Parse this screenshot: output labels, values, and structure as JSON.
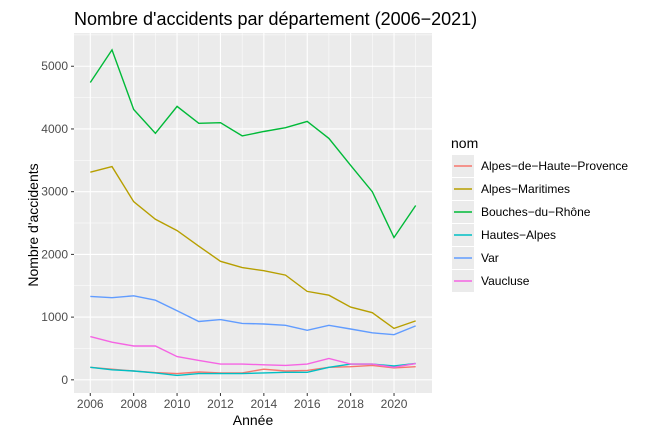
{
  "chart_data": {
    "type": "line",
    "title": "Nombre d'accidents par département (2006−2021)",
    "xlabel": "Année",
    "ylabel": "Nombre d'accidents",
    "xlim": [
      2005.25,
      2021.75
    ],
    "ylim": [
      -210,
      5530
    ],
    "x_ticks": [
      2006,
      2008,
      2010,
      2012,
      2014,
      2016,
      2018,
      2020
    ],
    "y_ticks": [
      0,
      1000,
      2000,
      3000,
      4000,
      5000
    ],
    "grid": true,
    "legend_title": "nom",
    "legend_position": "right",
    "x": [
      2006,
      2007,
      2008,
      2009,
      2010,
      2011,
      2012,
      2013,
      2014,
      2015,
      2016,
      2017,
      2018,
      2019,
      2020,
      2021
    ],
    "series": [
      {
        "name": "Alpes−de−Haute−Provence",
        "color": "#F8766D",
        "values": [
          200,
          170,
          140,
          115,
          100,
          125,
          110,
          110,
          170,
          140,
          150,
          200,
          210,
          230,
          190,
          210
        ]
      },
      {
        "name": "Alpes−Maritimes",
        "color": "#B79F00",
        "values": [
          3310,
          3400,
          2840,
          2560,
          2380,
          2130,
          1890,
          1790,
          1740,
          1670,
          1410,
          1350,
          1160,
          1070,
          820,
          940
        ]
      },
      {
        "name": "Bouches−du−Rhône",
        "color": "#00BA38",
        "values": [
          4740,
          5260,
          4310,
          3930,
          4360,
          4090,
          4100,
          3890,
          3960,
          4020,
          4120,
          3850,
          3420,
          3000,
          2270,
          2780
        ]
      },
      {
        "name": "Hautes−Alpes",
        "color": "#00BFC4",
        "values": [
          200,
          160,
          140,
          110,
          70,
          100,
          100,
          100,
          110,
          120,
          120,
          200,
          250,
          250,
          220,
          260
        ]
      },
      {
        "name": "Var",
        "color": "#619CFF",
        "values": [
          1330,
          1310,
          1340,
          1270,
          1100,
          930,
          960,
          900,
          890,
          870,
          790,
          870,
          810,
          750,
          720,
          860
        ]
      },
      {
        "name": "Vaucluse",
        "color": "#F564E3",
        "values": [
          690,
          600,
          540,
          540,
          370,
          310,
          250,
          250,
          240,
          230,
          250,
          340,
          250,
          250,
          200,
          260
        ]
      }
    ]
  }
}
